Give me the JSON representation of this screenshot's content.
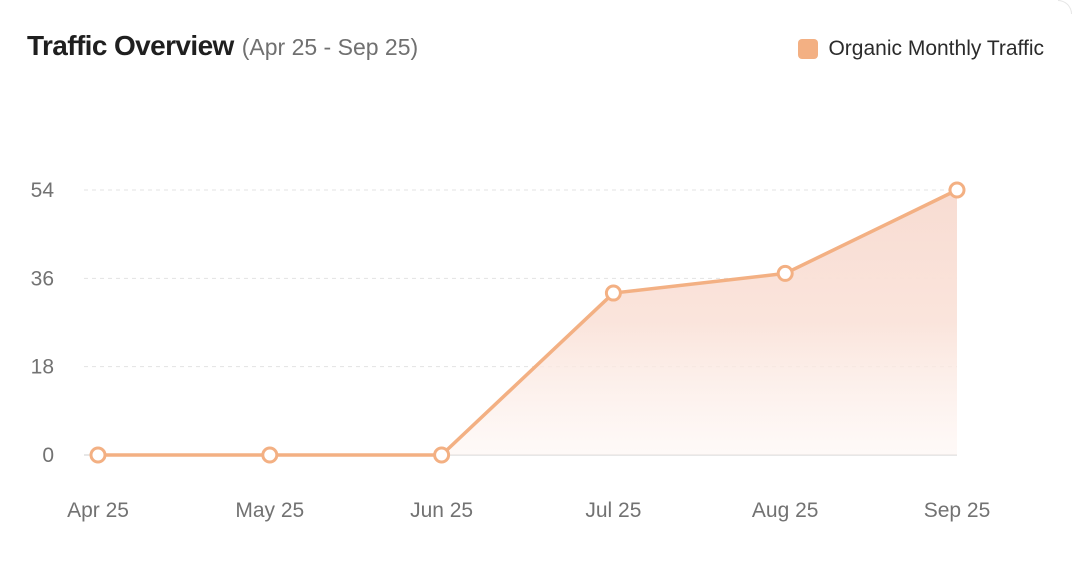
{
  "header": {
    "title": "Traffic Overview",
    "subtitle": "(Apr 25 - Sep 25)"
  },
  "legend": {
    "label": "Organic Monthly Traffic",
    "color": "#f3b083"
  },
  "chart_data": {
    "type": "area",
    "title": "Traffic Overview",
    "subtitle": "(Apr 25 - Sep 25)",
    "categories": [
      "Apr 25",
      "May 25",
      "Jun 25",
      "Jul 25",
      "Aug 25",
      "Sep 25"
    ],
    "series": [
      {
        "name": "Organic Monthly Traffic",
        "values": [
          0,
          0,
          0,
          33,
          37,
          54
        ],
        "color": "#f3b083",
        "fill_color": "#f8dcd2"
      }
    ],
    "yticks": [
      "0",
      "18",
      "36",
      "54"
    ],
    "ylim": [
      0,
      54
    ],
    "grid": true,
    "legend_position": "top-right"
  }
}
